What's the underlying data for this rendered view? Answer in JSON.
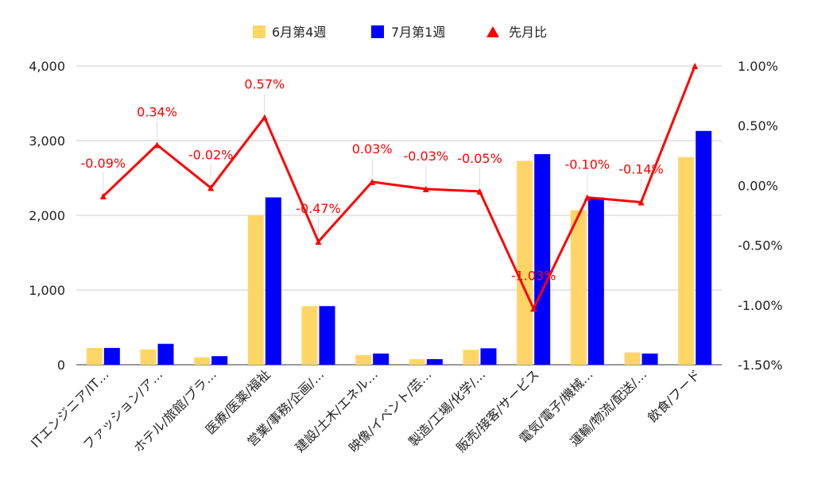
{
  "chart_data": {
    "type": "bar",
    "categories": [
      "ITエンジニア/IT…",
      "ファッション/ア…",
      "ホテル/旅館/ブラ…",
      "医療/医薬/福祉",
      "営業/事務/企画/…",
      "建設/土木/エネル…",
      "映像/イベント/芸…",
      "製造/工場/化学/…",
      "販売/接客/サービス",
      "電気/電子/機械…",
      "運輸/物流/配送/…",
      "飲食/フード"
    ],
    "series": [
      {
        "name": "6月第4週",
        "values": [
          225,
          205,
          100,
          2000,
          785,
          130,
          75,
          200,
          2730,
          2070,
          165,
          2780
        ],
        "color": "#ffd666",
        "axis": "left"
      },
      {
        "name": "7月第1週",
        "values": [
          225,
          280,
          115,
          2240,
          785,
          150,
          75,
          220,
          2820,
          2240,
          150,
          3130
        ],
        "color": "#0000ff",
        "axis": "left"
      },
      {
        "name": "先月比",
        "type": "line",
        "values": [
          -0.09,
          0.34,
          -0.02,
          0.57,
          -0.47,
          0.03,
          -0.03,
          -0.05,
          -1.03,
          -0.1,
          -0.14,
          1.0
        ],
        "labels": [
          "-0.09%",
          "0.34%",
          "-0.02%",
          "0.57%",
          "-0.47%",
          "0.03%",
          "-0.03%",
          "-0.05%",
          "-1.03%",
          "-0.10%",
          "-0.14%",
          ""
        ],
        "color": "#ff0000",
        "axis": "right"
      }
    ],
    "y_left": {
      "ylim": [
        0,
        4000
      ],
      "ticks": [
        "0",
        "1,000",
        "2,000",
        "3,000",
        "4,000"
      ]
    },
    "y_right": {
      "ylim": [
        -1.5,
        1.0
      ],
      "ticks": [
        "-1.50%",
        "-1.00%",
        "-0.50%",
        "0.00%",
        "0.50%",
        "1.00%"
      ]
    },
    "legend": {
      "position": "top",
      "items": [
        "6月第4週",
        "7月第1週",
        "先月比"
      ]
    },
    "grid": true
  }
}
